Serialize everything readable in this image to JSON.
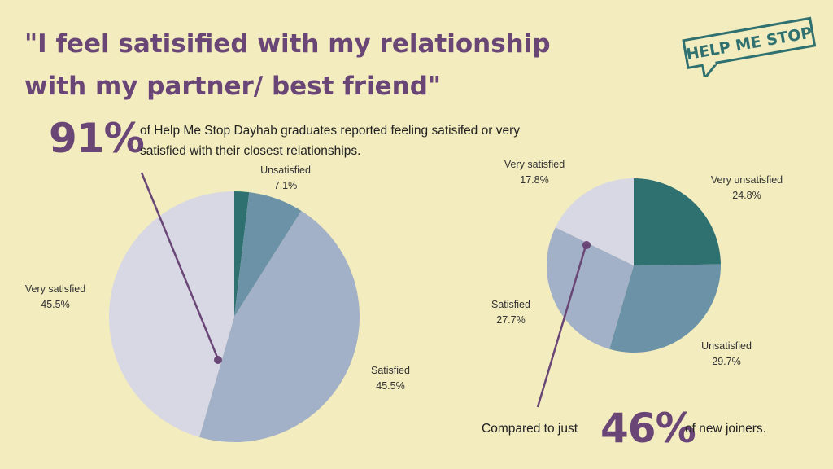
{
  "title": "\"I feel satisified with my relationship with my partner/ best friend\"",
  "logo": {
    "text": "HELP ME STOP"
  },
  "stat_graduates": {
    "value": "91%",
    "text": "of Help Me Stop Dayhab graduates reported feeling satisifed or very satisfied with their closest relationships."
  },
  "stat_new_joiners": {
    "prefix": "Compared to just",
    "value": "46%",
    "suffix": "of new joiners."
  },
  "colors": {
    "very_unsatisfied": "#2f7171",
    "unsatisfied": "#6b92a6",
    "satisfied": "#a3b1c8",
    "very_satisfied": "#d8d7e4",
    "accent": "#6a4677",
    "background": "#f2ecbf"
  },
  "chart_data": [
    {
      "type": "pie",
      "title": "",
      "slices": [
        {
          "label": "",
          "value": 1.9,
          "color": "#2f7171"
        },
        {
          "label": "Unsatisfied",
          "value": 7.1,
          "color": "#6b92a6"
        },
        {
          "label": "Satisfied",
          "value": 45.5,
          "color": "#a3b1c8"
        },
        {
          "label": "Very satisfied",
          "value": 45.5,
          "color": "#d8d7e4"
        }
      ],
      "labels": [
        {
          "name": "Unsatisfied",
          "value": "7.1%"
        },
        {
          "name": "Satisfied",
          "value": "45.5%"
        },
        {
          "name": "Very satisfied",
          "value": "45.5%"
        }
      ]
    },
    {
      "type": "pie",
      "title": "",
      "slices": [
        {
          "label": "Very unsatisfied",
          "value": 24.8,
          "color": "#2f7171"
        },
        {
          "label": "Unsatisfied",
          "value": 29.7,
          "color": "#6b92a6"
        },
        {
          "label": "Satisfied",
          "value": 27.7,
          "color": "#a3b1c8"
        },
        {
          "label": "Very satisfied",
          "value": 17.8,
          "color": "#d8d7e4"
        }
      ],
      "labels": [
        {
          "name": "Very unsatisfied",
          "value": "24.8%"
        },
        {
          "name": "Unsatisfied",
          "value": "29.7%"
        },
        {
          "name": "Satisfied",
          "value": "27.7%"
        },
        {
          "name": "Very satisfied",
          "value": "17.8%"
        }
      ]
    }
  ]
}
